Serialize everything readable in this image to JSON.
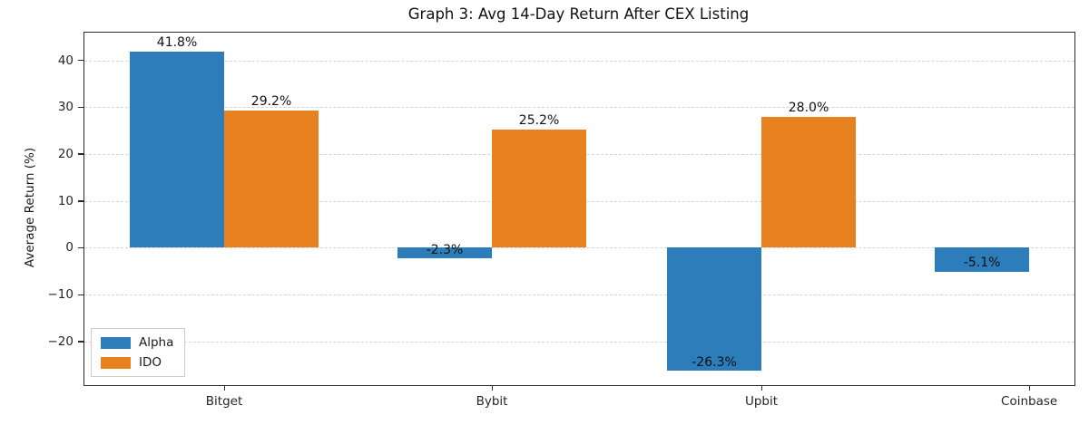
{
  "chart_data": {
    "type": "bar",
    "title": "Graph 3: Avg 14-Day Return After CEX Listing",
    "ylabel": "Average Return (%)",
    "xlabel": "",
    "categories": [
      "Bitget",
      "Bybit",
      "Upbit",
      "Coinbase"
    ],
    "series": [
      {
        "name": "Alpha",
        "color": "#2d7dbb",
        "values": [
          41.8,
          -2.3,
          -26.3,
          -5.1
        ],
        "labels": [
          "41.8%",
          "-2.3%",
          "-26.3%",
          "-5.1%"
        ]
      },
      {
        "name": "IDO",
        "color": "#e8821e",
        "values": [
          29.2,
          25.2,
          28.0,
          null
        ],
        "labels": [
          "29.2%",
          "25.2%",
          "28.0%",
          null
        ]
      }
    ],
    "yticks": [
      -20,
      -10,
      0,
      10,
      20,
      30,
      40
    ],
    "ylim": [
      -29.3,
      45.9
    ],
    "grid": "horizontal dashed",
    "legend_position": "lower left"
  }
}
